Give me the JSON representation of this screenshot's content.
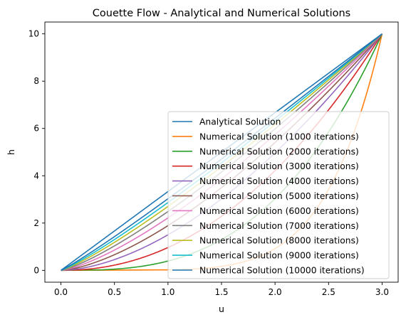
{
  "chart_data": {
    "type": "line",
    "title": "Couette Flow - Analytical and Numerical Solutions",
    "xlabel": "u",
    "ylabel": "h",
    "xlim": [
      -0.15,
      3.15
    ],
    "ylim": [
      -0.5,
      10.5
    ],
    "x_ticks": [
      "0.0",
      "0.5",
      "1.0",
      "1.5",
      "2.0",
      "2.5",
      "3.0"
    ],
    "y_ticks": [
      "0",
      "2",
      "4",
      "6",
      "8",
      "10"
    ],
    "grid": false,
    "legend_position": "lower-right",
    "u_max": 3.0,
    "h_max": 10.0,
    "series": [
      {
        "name": "Analytical Solution",
        "color": "#1f77b4",
        "shape_exponent": 1.0
      },
      {
        "name": "Numerical Solution (1000 iterations)",
        "color": "#ff7f0e",
        "shape_exponent": 0.17
      },
      {
        "name": "Numerical Solution (2000 iterations)",
        "color": "#2ca02c",
        "shape_exponent": 0.34
      },
      {
        "name": "Numerical Solution (3000 iterations)",
        "color": "#d62728",
        "shape_exponent": 0.47
      },
      {
        "name": "Numerical Solution (4000 iterations)",
        "color": "#9467bd",
        "shape_exponent": 0.58
      },
      {
        "name": "Numerical Solution (5000 iterations)",
        "color": "#8c564b",
        "shape_exponent": 0.66
      },
      {
        "name": "Numerical Solution (6000 iterations)",
        "color": "#e377c2",
        "shape_exponent": 0.73
      },
      {
        "name": "Numerical Solution (7000 iterations)",
        "color": "#7f7f7f",
        "shape_exponent": 0.79
      },
      {
        "name": "Numerical Solution (8000 iterations)",
        "color": "#bcbd22",
        "shape_exponent": 0.84
      },
      {
        "name": "Numerical Solution (9000 iterations)",
        "color": "#17becf",
        "shape_exponent": 0.88
      },
      {
        "name": "Numerical Solution (10000 iterations)",
        "color": "#1f77b4",
        "shape_exponent": 0.92
      }
    ]
  }
}
